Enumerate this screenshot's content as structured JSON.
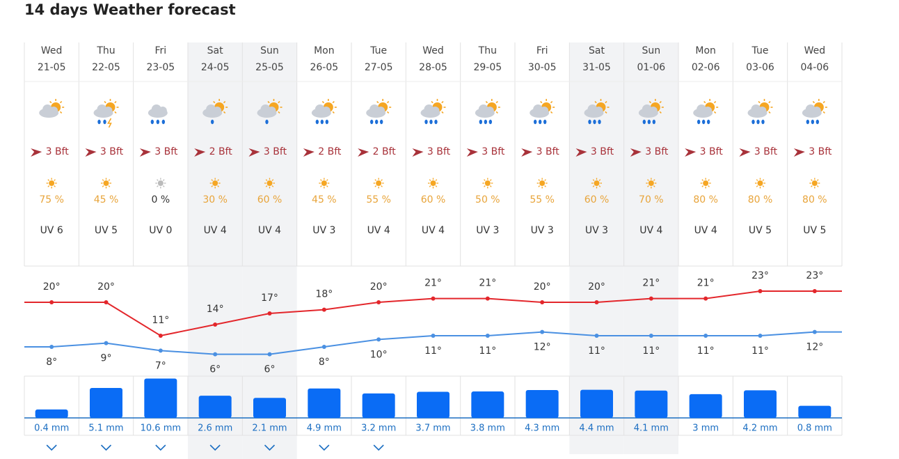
{
  "title": "14 days Weather forecast",
  "days": [
    {
      "day": "Wed",
      "date": "21-05",
      "wind": "3 Bft",
      "sun": "75 %",
      "uv": "UV 6",
      "high": {
        "value": 20,
        "label": "20°"
      },
      "low": {
        "value": 8,
        "label": "8°"
      },
      "precipitation": {
        "value": 0.4,
        "label": "0.4 mm"
      }
    },
    {
      "day": "Thu",
      "date": "22-05",
      "wind": "3 Bft",
      "sun": "45 %",
      "uv": "UV 5",
      "high": {
        "value": 20,
        "label": "20°"
      },
      "low": {
        "value": 9,
        "label": "9°"
      },
      "precipitation": {
        "value": 5.1,
        "label": "5.1 mm"
      }
    },
    {
      "day": "Fri",
      "date": "23-05",
      "wind": "3 Bft",
      "sun": "0 %",
      "uv": "UV 0",
      "high": {
        "value": 11,
        "label": "11°"
      },
      "low": {
        "value": 7,
        "label": "7°"
      },
      "precipitation": {
        "value": 10.6,
        "label": "10.6 mm"
      }
    },
    {
      "day": "Sat",
      "date": "24-05",
      "wind": "2 Bft",
      "sun": "30 %",
      "uv": "UV 4",
      "high": {
        "value": 14,
        "label": "14°"
      },
      "low": {
        "value": 6,
        "label": "6°"
      },
      "precipitation": {
        "value": 2.6,
        "label": "2.6 mm"
      }
    },
    {
      "day": "Sun",
      "date": "25-05",
      "wind": "3 Bft",
      "sun": "60 %",
      "uv": "UV 4",
      "high": {
        "value": 17,
        "label": "17°"
      },
      "low": {
        "value": 6,
        "label": "6°"
      },
      "precipitation": {
        "value": 2.1,
        "label": "2.1 mm"
      }
    },
    {
      "day": "Mon",
      "date": "26-05",
      "wind": "2 Bft",
      "sun": "45 %",
      "uv": "UV 3",
      "high": {
        "value": 18,
        "label": "18°"
      },
      "low": {
        "value": 8,
        "label": "8°"
      },
      "precipitation": {
        "value": 4.9,
        "label": "4.9 mm"
      }
    },
    {
      "day": "Tue",
      "date": "27-05",
      "wind": "2 Bft",
      "sun": "55 %",
      "uv": "UV 4",
      "high": {
        "value": 20,
        "label": "20°"
      },
      "low": {
        "value": 10,
        "label": "10°"
      },
      "precipitation": {
        "value": 3.2,
        "label": "3.2 mm"
      }
    },
    {
      "day": "Wed",
      "date": "28-05",
      "wind": "3 Bft",
      "sun": "60 %",
      "uv": "UV 4",
      "high": {
        "value": 21,
        "label": "21°"
      },
      "low": {
        "value": 11,
        "label": "11°"
      },
      "precipitation": {
        "value": 3.7,
        "label": "3.7 mm"
      }
    },
    {
      "day": "Thu",
      "date": "29-05",
      "wind": "3 Bft",
      "sun": "50 %",
      "uv": "UV 3",
      "high": {
        "value": 21,
        "label": "21°"
      },
      "low": {
        "value": 11,
        "label": "11°"
      },
      "precipitation": {
        "value": 3.8,
        "label": "3.8 mm"
      }
    },
    {
      "day": "Fri",
      "date": "30-05",
      "wind": "3 Bft",
      "sun": "55 %",
      "uv": "UV 3",
      "high": {
        "value": 20,
        "label": "20°"
      },
      "low": {
        "value": 12,
        "label": "12°"
      },
      "precipitation": {
        "value": 4.3,
        "label": "4.3 mm"
      }
    },
    {
      "day": "Sat",
      "date": "31-05",
      "wind": "3 Bft",
      "sun": "60 %",
      "uv": "UV 3",
      "high": {
        "value": 20,
        "label": "20°"
      },
      "low": {
        "value": 11,
        "label": "11°"
      },
      "precipitation": {
        "value": 4.4,
        "label": "4.4 mm"
      }
    },
    {
      "day": "Sun",
      "date": "01-06",
      "wind": "3 Bft",
      "sun": "70 %",
      "uv": "UV 4",
      "high": {
        "value": 21,
        "label": "21°"
      },
      "low": {
        "value": 11,
        "label": "11°"
      },
      "precipitation": {
        "value": 4.1,
        "label": "4.1 mm"
      }
    },
    {
      "day": "Mon",
      "date": "02-06",
      "wind": "3 Bft",
      "sun": "80 %",
      "uv": "UV 4",
      "high": {
        "value": 21,
        "label": "21°"
      },
      "low": {
        "value": 11,
        "label": "11°"
      },
      "precipitation": {
        "value": 3,
        "label": "3 mm"
      }
    },
    {
      "day": "Tue",
      "date": "03-06",
      "wind": "3 Bft",
      "sun": "80 %",
      "uv": "UV 5",
      "high": {
        "value": 23,
        "label": "23°"
      },
      "low": {
        "value": 11,
        "label": "11°"
      },
      "precipitation": {
        "value": 4.2,
        "label": "4.2 mm"
      }
    },
    {
      "day": "Wed",
      "date": "04-06",
      "wind": "3 Bft",
      "sun": "80 %",
      "uv": "UV 5",
      "high": {
        "value": 23,
        "label": "23°"
      },
      "low": {
        "value": 12,
        "label": "12°"
      },
      "precipitation": {
        "value": 0.8,
        "label": "0.8 mm"
      }
    }
  ]
}
